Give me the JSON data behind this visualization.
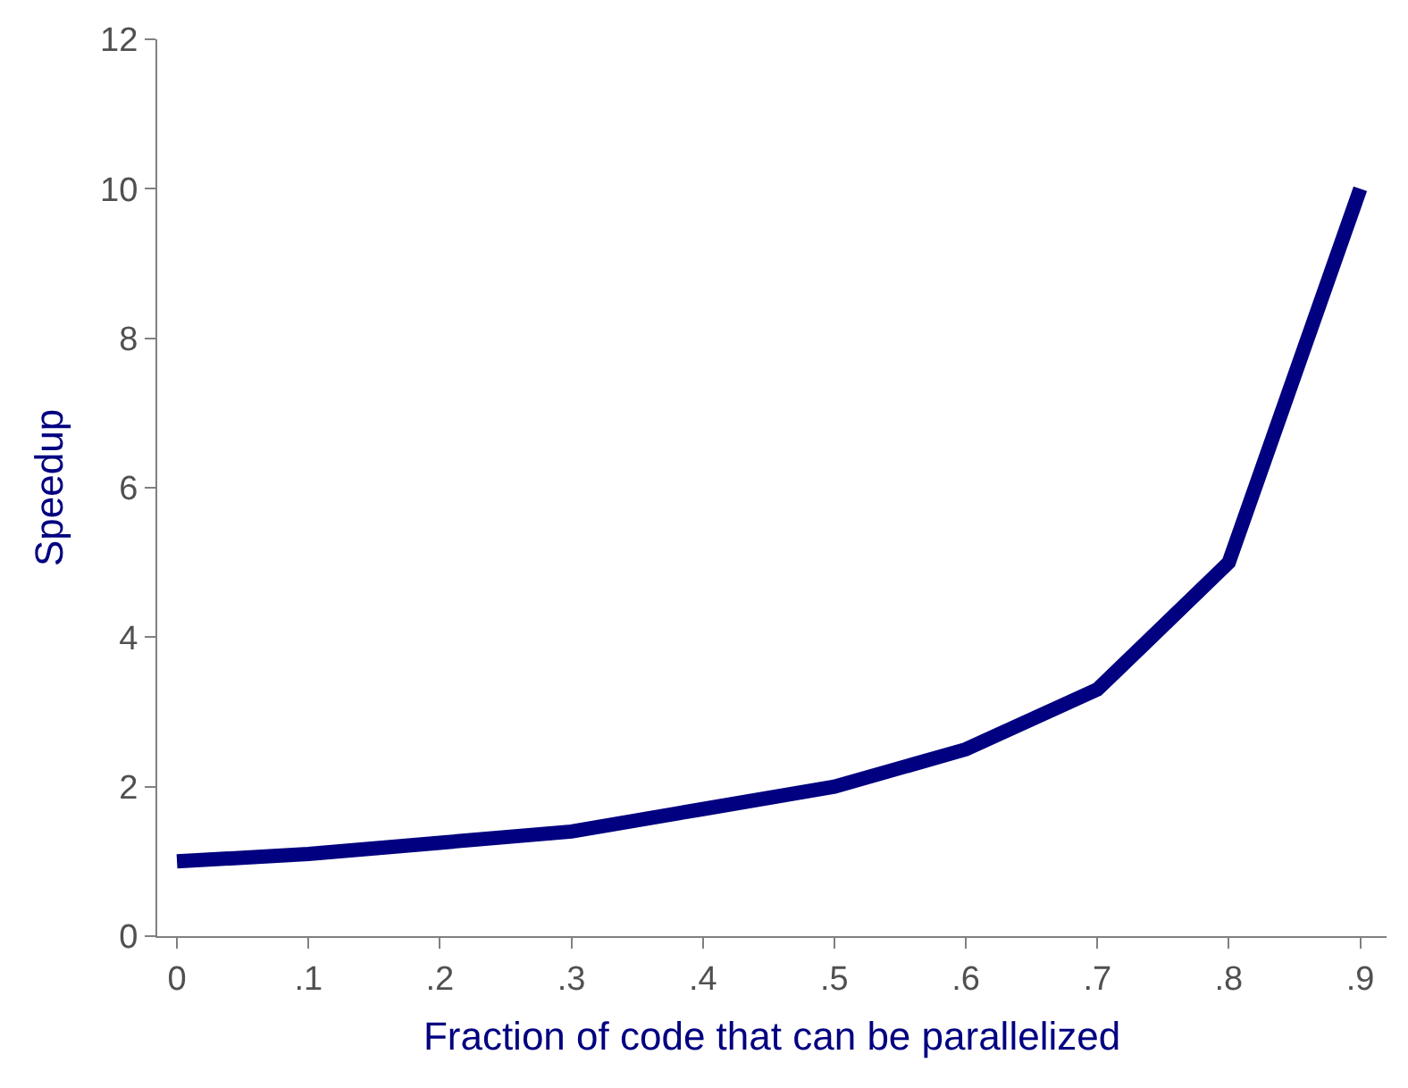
{
  "chart_data": {
    "type": "line",
    "xlabel": "Fraction of code that can be parallelized",
    "ylabel": "Speedup",
    "x": [
      0,
      0.1,
      0.2,
      0.3,
      0.4,
      0.5,
      0.6,
      0.7,
      0.8,
      0.9
    ],
    "series": [
      {
        "color": "#000080",
        "values": [
          1.0,
          1.1,
          1.25,
          1.4,
          1.7,
          2.0,
          2.5,
          3.3,
          5.0,
          10.0
        ]
      }
    ],
    "xlim": [
      -0.015,
      0.92
    ],
    "ylim": [
      0,
      12
    ],
    "xticks": [
      0,
      {
        "value": 0.1,
        "label": ".1"
      },
      {
        "value": 0.2,
        "label": ".2"
      },
      {
        "value": 0.3,
        "label": ".3"
      },
      {
        "value": 0.4,
        "label": ".4"
      },
      {
        "value": 0.5,
        "label": ".5"
      },
      {
        "value": 0.6,
        "label": ".6"
      },
      {
        "value": 0.7,
        "label": ".7"
      },
      {
        "value": 0.8,
        "label": ".8"
      },
      {
        "value": 0.9,
        "label": ".9"
      }
    ],
    "yticks": [
      0,
      2,
      4,
      6,
      8,
      10,
      12
    ],
    "marker": "none",
    "line_style": "solid"
  }
}
